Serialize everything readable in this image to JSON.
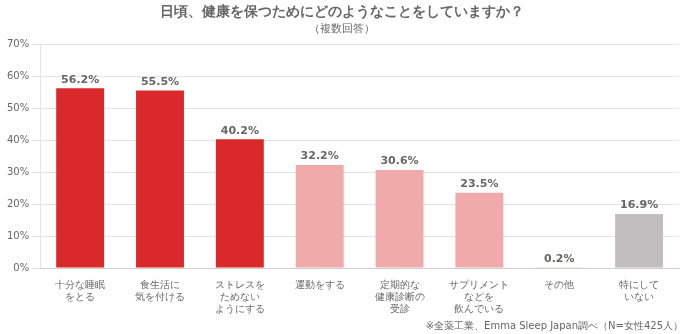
{
  "chart_data": {
    "type": "bar",
    "title": "日頃、健康を保つためにどのようなことをしていますか？",
    "subtitle": "（複数回答）",
    "footnote": "※全薬工業、Emma Sleep Japan調べ（N=女性425人）",
    "categories": [
      "十分な睡眠\nをとる",
      "食生活に\n気を付ける",
      "ストレスを\nためない\nようにする",
      "運動をする",
      "定期的な\n健康診断の\n受診",
      "サプリメント\nなどを\n飲んでいる",
      "その他",
      "特にして\nいない"
    ],
    "values": [
      56.2,
      55.5,
      40.2,
      32.2,
      30.6,
      23.5,
      0.2,
      16.9
    ],
    "value_labels": [
      "56.2%",
      "55.5%",
      "40.2%",
      "32.2%",
      "30.6%",
      "23.5%",
      "0.2%",
      "16.9%"
    ],
    "data_labels": true,
    "colors": [
      "#d9292b",
      "#d9292b",
      "#d9292b",
      "#f0aaaa",
      "#f0aaaa",
      "#f0aaaa",
      "#f0aaaa",
      "#c0bebe"
    ],
    "ylim": [
      0,
      70
    ],
    "yticks": [
      {
        "value": 0,
        "label": "0%"
      },
      {
        "value": 10,
        "label": "10%"
      },
      {
        "value": 20,
        "label": "20%"
      },
      {
        "value": 30,
        "label": "30%"
      },
      {
        "value": 40,
        "label": "40%"
      },
      {
        "value": 50,
        "label": "50%"
      },
      {
        "value": 60,
        "label": "60%"
      },
      {
        "value": 70,
        "label": "70%"
      }
    ],
    "grid": true
  }
}
